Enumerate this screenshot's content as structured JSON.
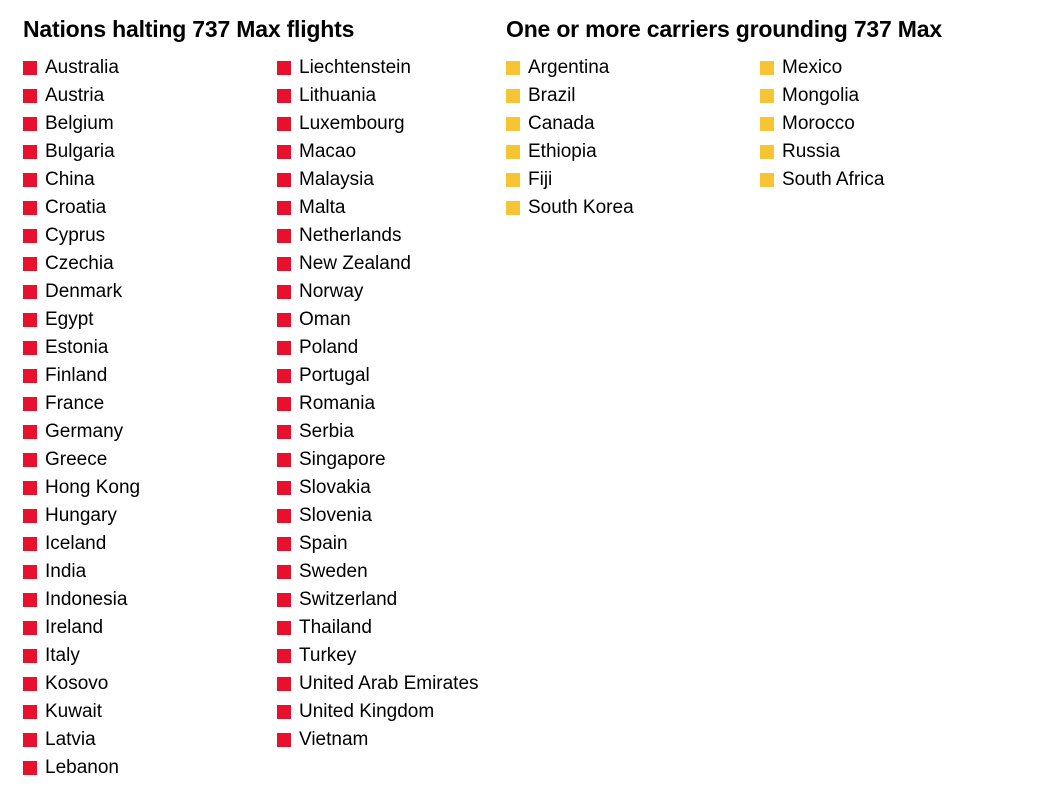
{
  "colors": {
    "halting": "#e8112d",
    "carriers": "#f7c533"
  },
  "halting": {
    "title": "Nations halting 737 Max flights",
    "columns": [
      [
        "Australia",
        "Austria",
        "Belgium",
        "Bulgaria",
        "China",
        "Croatia",
        "Cyprus",
        "Czechia",
        "Denmark",
        "Egypt",
        "Estonia",
        "Finland",
        "France",
        "Germany",
        "Greece",
        "Hong Kong",
        "Hungary",
        "Iceland",
        "India",
        "Indonesia",
        "Ireland",
        "Italy",
        "Kosovo",
        "Kuwait",
        "Latvia",
        "Lebanon"
      ],
      [
        "Liechtenstein",
        "Lithuania",
        "Luxembourg",
        "Macao",
        "Malaysia",
        "Malta",
        "Netherlands",
        "New Zealand",
        "Norway",
        "Oman",
        "Poland",
        "Portugal",
        "Romania",
        "Serbia",
        "Singapore",
        "Slovakia",
        "Slovenia",
        "Spain",
        "Sweden",
        "Switzerland",
        "Thailand",
        "Turkey",
        "United Arab Emirates",
        "United Kingdom",
        "Vietnam"
      ]
    ]
  },
  "carriers": {
    "title": "One or more carriers grounding 737 Max",
    "columns": [
      [
        "Argentina",
        "Brazil",
        "Canada",
        "Ethiopia",
        "Fiji",
        "South Korea"
      ],
      [
        "Mexico",
        "Mongolia",
        "Morocco",
        "Russia",
        "South Africa"
      ]
    ]
  }
}
